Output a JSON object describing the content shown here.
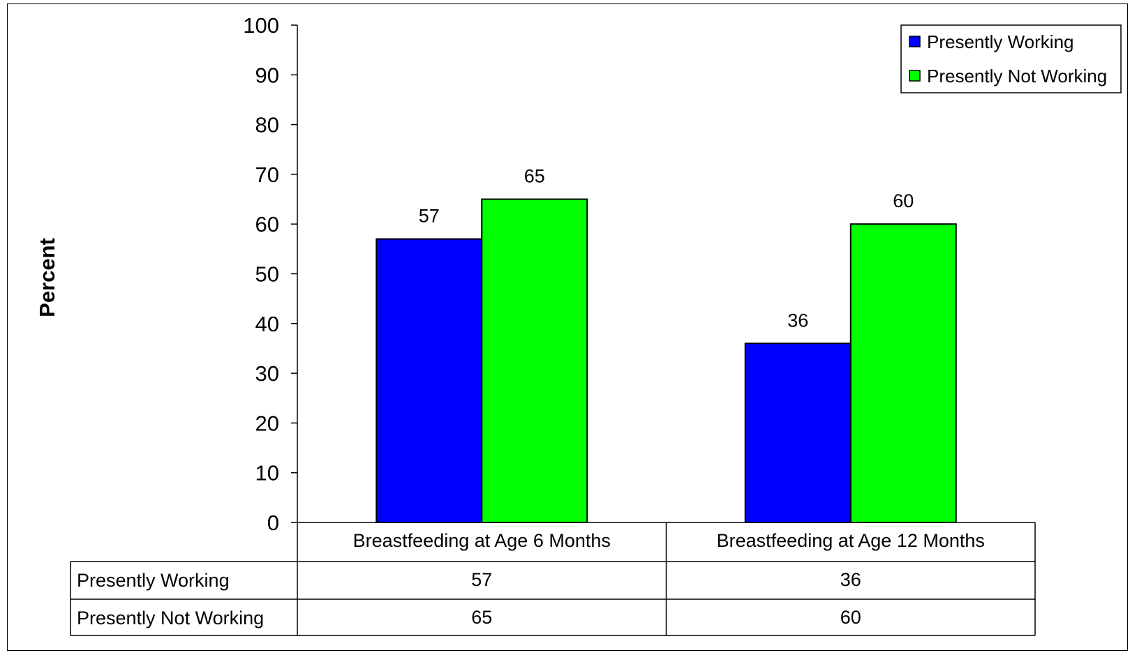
{
  "chart_data": {
    "type": "bar",
    "categories": [
      "Breastfeeding at Age 6 Months",
      "Breastfeeding at Age 12 Months"
    ],
    "series": [
      {
        "name": "Presently Working",
        "values": [
          57,
          36
        ],
        "color": "#0000ff"
      },
      {
        "name": "Presently Not Working",
        "values": [
          65,
          60
        ],
        "color": "#00ff00"
      }
    ],
    "title": "",
    "xlabel": "",
    "ylabel": "Percent",
    "ylim": [
      0,
      100
    ],
    "yticks": [
      0,
      10,
      20,
      30,
      40,
      50,
      60,
      70,
      80,
      90,
      100
    ],
    "grid": false,
    "legend_position": "top-right",
    "data_table": true
  }
}
